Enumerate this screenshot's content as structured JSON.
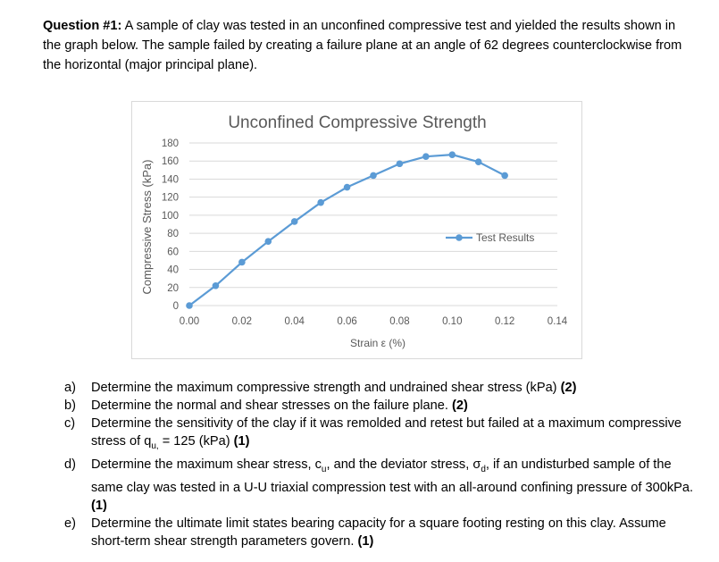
{
  "question": {
    "label": "Question #1:",
    "text": " A sample of clay was tested in an unconfined compressive test and yielded the results shown in the graph below. The sample failed by creating a failure plane at an angle of 62 degrees counterclockwise from the horizontal (major principal plane)."
  },
  "chart_data": {
    "type": "line",
    "title": "Unconfined Compressive Strength",
    "xlabel": "Strain ε (%)",
    "ylabel": "Compressive Stress (kPa)",
    "xlim": [
      0,
      0.14
    ],
    "ylim": [
      0,
      180
    ],
    "xticks": [
      "0.00",
      "0.02",
      "0.04",
      "0.06",
      "0.08",
      "0.10",
      "0.12",
      "0.14"
    ],
    "yticks": [
      "0",
      "20",
      "40",
      "60",
      "80",
      "100",
      "120",
      "140",
      "160",
      "180"
    ],
    "grid": true,
    "legend_position": "right",
    "series": [
      {
        "name": "Test Results",
        "color": "#5b9bd5",
        "x": [
          0.0,
          0.01,
          0.02,
          0.03,
          0.04,
          0.05,
          0.06,
          0.07,
          0.08,
          0.09,
          0.1,
          0.11,
          0.12
        ],
        "y": [
          0,
          22,
          48,
          71,
          93,
          114,
          131,
          144,
          157,
          165,
          167,
          159,
          144
        ]
      }
    ]
  },
  "parts": [
    {
      "label": "a)",
      "text": "Determine the maximum compressive strength and undrained shear stress (kPa) ",
      "points": "(2)"
    },
    {
      "label": "b)",
      "text": "Determine the normal and shear stresses on the failure plane. ",
      "points": "(2)"
    },
    {
      "label": "c)",
      "text_pre": "Determine the sensitivity of the clay if it was remolded and retest but failed at a maximum compressive stress of q",
      "sub": "u,",
      "text_post": " = 125 (kPa) ",
      "points": "(1)"
    },
    {
      "label": "d)",
      "text_a": "Determine the maximum shear stress, c",
      "sub_a": "u",
      "text_b": ", and the deviator stress, σ",
      "sub_b": "d",
      "text_c": ", if an undisturbed sample of the same clay was tested in a U-U triaxial compression test with an all-around confining pressure of 300kPa.  ",
      "points": "(1)"
    },
    {
      "label": "e)",
      "text": "Determine the ultimate limit states bearing capacity for a square footing resting on this clay. Assume short-term shear strength parameters govern. ",
      "points": "(1)"
    }
  ]
}
